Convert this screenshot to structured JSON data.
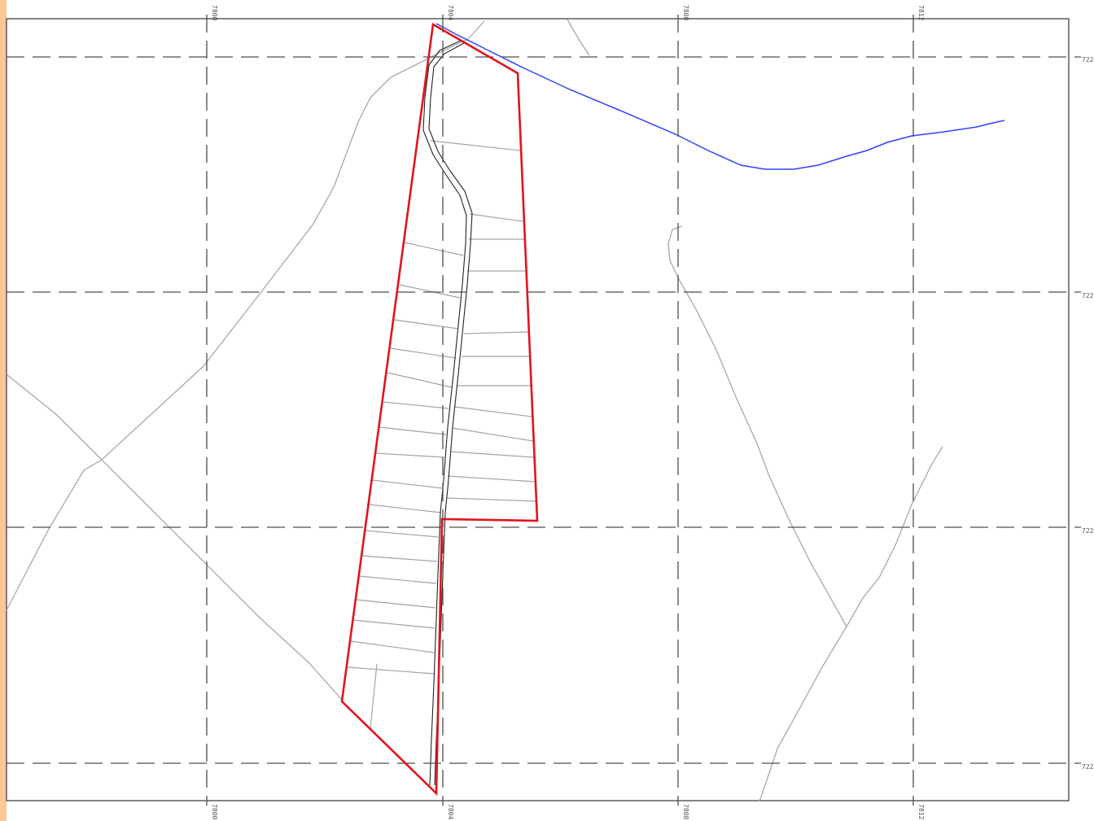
{
  "colors": {
    "side_strip": "#FDC795",
    "parcel_boundary": "#E0141E",
    "river": "#3340FF",
    "road": "#222222",
    "terrain_lines": "#A8A8A8",
    "grid": "#4D4D4D",
    "frame": "#333333"
  },
  "grid": {
    "x_labels_top": [
      "7800",
      "7804",
      "7808",
      "7812"
    ],
    "x_labels_bottom": [
      "7800",
      "7804",
      "7808",
      "7812"
    ],
    "y_labels_right": [
      "722",
      "722",
      "722",
      "722"
    ]
  },
  "features": {
    "parcel": "parcel-boundary",
    "road": "access-road",
    "river": "river",
    "lots": "lot-subdivision-lines",
    "terrain": "terrain-lines"
  }
}
